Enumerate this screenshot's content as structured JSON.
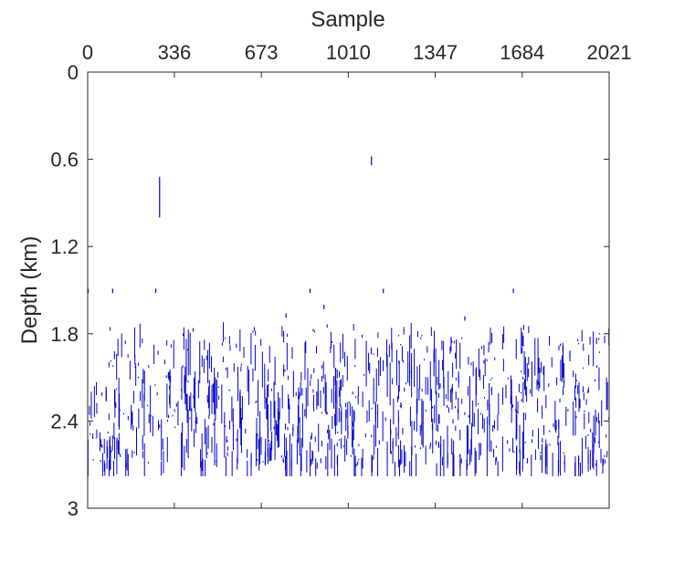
{
  "chart_data": {
    "type": "scatter",
    "title": "",
    "xlabel": "Sample",
    "ylabel": "Depth (km)",
    "x_axis_position": "top",
    "y_direction": "reversed",
    "xlim": [
      0,
      2021
    ],
    "ylim": [
      0,
      3
    ],
    "xticks": [
      0,
      336,
      673,
      1010,
      1347,
      1684,
      2021
    ],
    "xtick_labels": [
      "0",
      "336",
      "673",
      "1010",
      "1347",
      "1684",
      "2021"
    ],
    "yticks": [
      0,
      0.6,
      1.2,
      1.8,
      2.4,
      3
    ],
    "ytick_labels": [
      "0",
      "0.6",
      "1.2",
      "1.8",
      "2.4",
      "3"
    ],
    "grid": false,
    "legend": "none",
    "mark_color": "#0000cc",
    "isolated_marks": [
      {
        "x": 277,
        "y0": 0.72,
        "y1": 1.0
      },
      {
        "x": 1098,
        "y0": 0.58,
        "y1": 0.64
      },
      {
        "x": 0,
        "y0": 1.49,
        "y1": 1.52
      },
      {
        "x": 95,
        "y0": 1.49,
        "y1": 1.52
      },
      {
        "x": 262,
        "y0": 1.49,
        "y1": 1.52
      },
      {
        "x": 860,
        "y0": 1.49,
        "y1": 1.52
      },
      {
        "x": 1144,
        "y0": 1.49,
        "y1": 1.52
      },
      {
        "x": 1648,
        "y0": 1.49,
        "y1": 1.52
      },
      {
        "x": 914,
        "y0": 1.6,
        "y1": 1.63
      },
      {
        "x": 767,
        "y0": 1.66,
        "y1": 1.69
      },
      {
        "x": 1460,
        "y0": 1.68,
        "y1": 1.71
      }
    ],
    "noise_band": {
      "depth_top": 1.72,
      "depth_bottom": 2.78,
      "density": "high"
    }
  }
}
